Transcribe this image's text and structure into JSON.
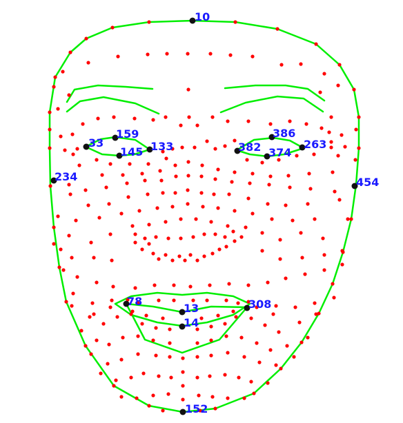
{
  "diagram": {
    "colors": {
      "background": "#ffffff",
      "contour": "#00ee00",
      "mesh_point": "#ff0000",
      "key_point": "#111111",
      "label": "#1a1aff"
    },
    "key_point_labels": [
      "10",
      "159",
      "33",
      "145",
      "133",
      "386",
      "382",
      "374",
      "263",
      "234",
      "454",
      "78",
      "13",
      "308",
      "14",
      "152"
    ]
  }
}
